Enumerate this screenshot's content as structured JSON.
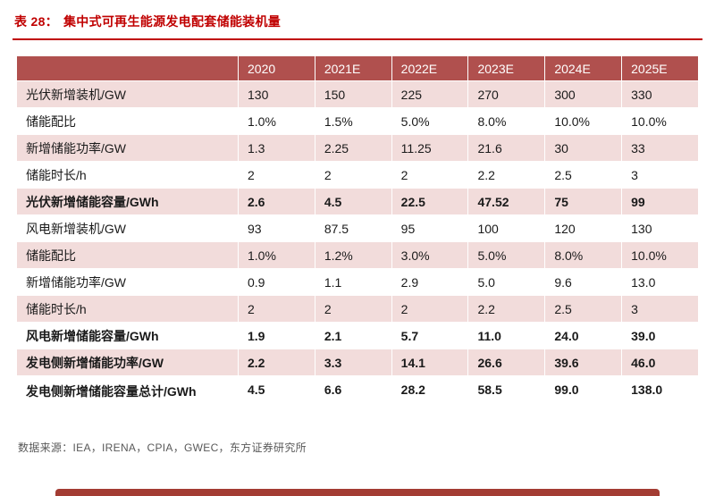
{
  "page": {
    "title_prefix": "表 28：",
    "title": "集中式可再生能源发电配套储能装机量",
    "source": "数据来源：IEA，IRENA，CPIA，GWEC，东方证券研究所"
  },
  "colors": {
    "title_red": "#c00000",
    "header_bg": "#b0504e",
    "row_pink": "#f2dcdb",
    "row_white": "#ffffff",
    "footer_bar": "#a33c33"
  },
  "chart_data": {
    "type": "table",
    "title": "集中式可再生能源发电配套储能装机量",
    "columns": [
      "",
      "2020",
      "2021E",
      "2022E",
      "2023E",
      "2024E",
      "2025E"
    ],
    "rows": [
      {
        "label": "光伏新增装机/GW",
        "bold": false,
        "shade": true,
        "values": [
          "130",
          "150",
          "225",
          "270",
          "300",
          "330"
        ]
      },
      {
        "label": "储能配比",
        "bold": false,
        "shade": false,
        "values": [
          "1.0%",
          "1.5%",
          "5.0%",
          "8.0%",
          "10.0%",
          "10.0%"
        ]
      },
      {
        "label": "新增储能功率/GW",
        "bold": false,
        "shade": true,
        "values": [
          "1.3",
          "2.25",
          "11.25",
          "21.6",
          "30",
          "33"
        ]
      },
      {
        "label": "储能时长/h",
        "bold": false,
        "shade": false,
        "values": [
          "2",
          "2",
          "2",
          "2.2",
          "2.5",
          "3"
        ]
      },
      {
        "label": "光伏新增储能容量/GWh",
        "bold": true,
        "shade": true,
        "values": [
          "2.6",
          "4.5",
          "22.5",
          "47.52",
          "75",
          "99"
        ]
      },
      {
        "label": "风电新增装机/GW",
        "bold": false,
        "shade": false,
        "values": [
          "93",
          "87.5",
          "95",
          "100",
          "120",
          "130"
        ]
      },
      {
        "label": "储能配比",
        "bold": false,
        "shade": true,
        "values": [
          "1.0%",
          "1.2%",
          "3.0%",
          "5.0%",
          "8.0%",
          "10.0%"
        ]
      },
      {
        "label": "新增储能功率/GW",
        "bold": false,
        "shade": false,
        "values": [
          "0.9",
          "1.1",
          "2.9",
          "5.0",
          "9.6",
          "13.0"
        ]
      },
      {
        "label": "储能时长/h",
        "bold": false,
        "shade": true,
        "values": [
          "2",
          "2",
          "2",
          "2.2",
          "2.5",
          "3"
        ]
      },
      {
        "label": "风电新增储能容量/GWh",
        "bold": true,
        "shade": false,
        "values": [
          "1.9",
          "2.1",
          "5.7",
          "11.0",
          "24.0",
          "39.0"
        ]
      },
      {
        "label": "发电侧新增储能功率/GW",
        "bold": true,
        "shade": true,
        "values": [
          "2.2",
          "3.3",
          "14.1",
          "26.6",
          "39.6",
          "46.0"
        ]
      },
      {
        "label": "发电侧新增储能容量总计/GWh",
        "bold": true,
        "shade": false,
        "values": [
          "4.5",
          "6.6",
          "28.2",
          "58.5",
          "99.0",
          "138.0"
        ]
      }
    ]
  }
}
